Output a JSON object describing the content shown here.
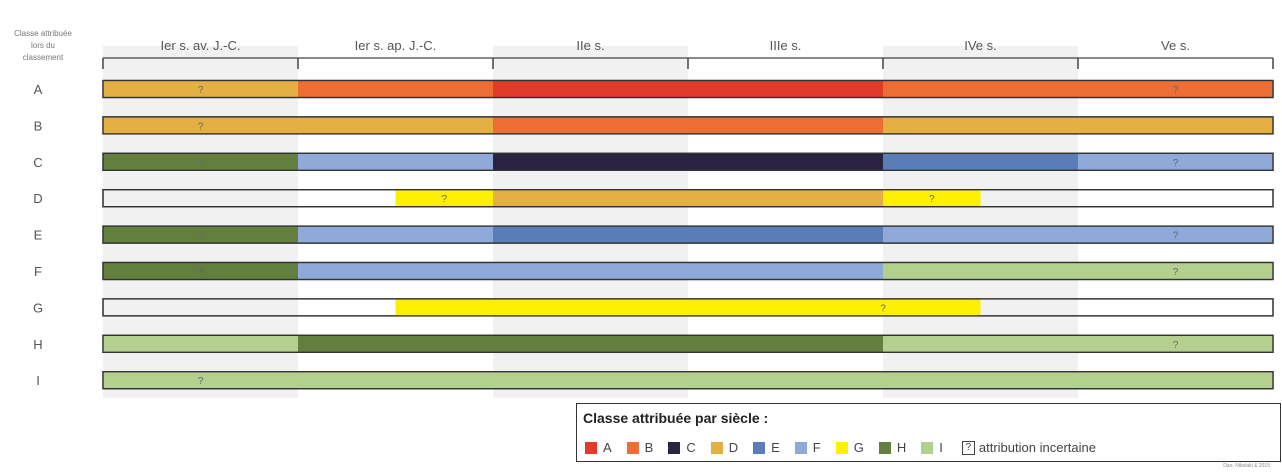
{
  "chart_data": {
    "type": "timeline",
    "header_label": "Classe attribuée\nlors du\nclassement",
    "periods": [
      "Ier s. av. J.-C.",
      "Ier s. ap. J.-C.",
      "IIe s.",
      "IIIe s.",
      "IVe s.",
      "Ve s."
    ],
    "x_range": [
      0,
      6
    ],
    "rows": [
      {
        "label": "A",
        "segments": [
          {
            "start": 0,
            "end": 1,
            "class": "D",
            "uncertain": true
          },
          {
            "start": 1,
            "end": 2,
            "class": "B",
            "uncertain": false
          },
          {
            "start": 2,
            "end": 4,
            "class": "A",
            "uncertain": false
          },
          {
            "start": 4,
            "end": 6,
            "class": "B",
            "uncertain": true
          }
        ]
      },
      {
        "label": "B",
        "segments": [
          {
            "start": 0,
            "end": 2,
            "class": "D",
            "uncertain": true
          },
          {
            "start": 2,
            "end": 4,
            "class": "B",
            "uncertain": false
          },
          {
            "start": 4,
            "end": 6,
            "class": "D",
            "uncertain": false
          }
        ]
      },
      {
        "label": "C",
        "segments": [
          {
            "start": 0,
            "end": 1,
            "class": "H",
            "uncertain": true
          },
          {
            "start": 1,
            "end": 2,
            "class": "F",
            "uncertain": false
          },
          {
            "start": 2,
            "end": 4,
            "class": "C",
            "uncertain": false
          },
          {
            "start": 4,
            "end": 5,
            "class": "E",
            "uncertain": false
          },
          {
            "start": 5,
            "end": 6,
            "class": "F",
            "uncertain": true
          }
        ]
      },
      {
        "label": "D",
        "segments": [
          {
            "start": 1.5,
            "end": 2,
            "class": "G",
            "uncertain": true
          },
          {
            "start": 2,
            "end": 4,
            "class": "D",
            "uncertain": false
          },
          {
            "start": 4,
            "end": 4.5,
            "class": "G",
            "uncertain": true
          }
        ]
      },
      {
        "label": "E",
        "segments": [
          {
            "start": 0,
            "end": 1,
            "class": "H",
            "uncertain": true
          },
          {
            "start": 1,
            "end": 2,
            "class": "F",
            "uncertain": false
          },
          {
            "start": 2,
            "end": 4,
            "class": "E",
            "uncertain": false
          },
          {
            "start": 4,
            "end": 6,
            "class": "F",
            "uncertain": true
          }
        ]
      },
      {
        "label": "F",
        "segments": [
          {
            "start": 0,
            "end": 1,
            "class": "H",
            "uncertain": true
          },
          {
            "start": 1,
            "end": 4,
            "class": "F",
            "uncertain": false
          },
          {
            "start": 4,
            "end": 6,
            "class": "I",
            "uncertain": true
          }
        ]
      },
      {
        "label": "G",
        "segments": [
          {
            "start": 1.5,
            "end": 4.5,
            "class": "G",
            "uncertain": true
          }
        ]
      },
      {
        "label": "H",
        "segments": [
          {
            "start": 0,
            "end": 1,
            "class": "I",
            "uncertain": false
          },
          {
            "start": 1,
            "end": 4,
            "class": "H",
            "uncertain": false
          },
          {
            "start": 4,
            "end": 6,
            "class": "I",
            "uncertain": true
          }
        ]
      },
      {
        "label": "I",
        "segments": [
          {
            "start": 0,
            "end": 6,
            "class": "I",
            "uncertain": true
          }
        ]
      }
    ],
    "uncertain_mark": "?",
    "legend": {
      "title": "Classe attribuée par siècle :",
      "items": [
        {
          "label": "A",
          "color": "#e23b2a"
        },
        {
          "label": "B",
          "color": "#ec6e34"
        },
        {
          "label": "C",
          "color": "#2a2342"
        },
        {
          "label": "D",
          "color": "#e5b043"
        },
        {
          "label": "E",
          "color": "#5a7db8"
        },
        {
          "label": "F",
          "color": "#8fa9d8"
        },
        {
          "label": "G",
          "color": "#fff000"
        },
        {
          "label": "H",
          "color": "#627f3d"
        },
        {
          "label": "I",
          "color": "#b3d08f"
        }
      ],
      "uncertain_label": "attribution incertaine"
    },
    "credit": "Dao, Nikolaki & 2015"
  }
}
